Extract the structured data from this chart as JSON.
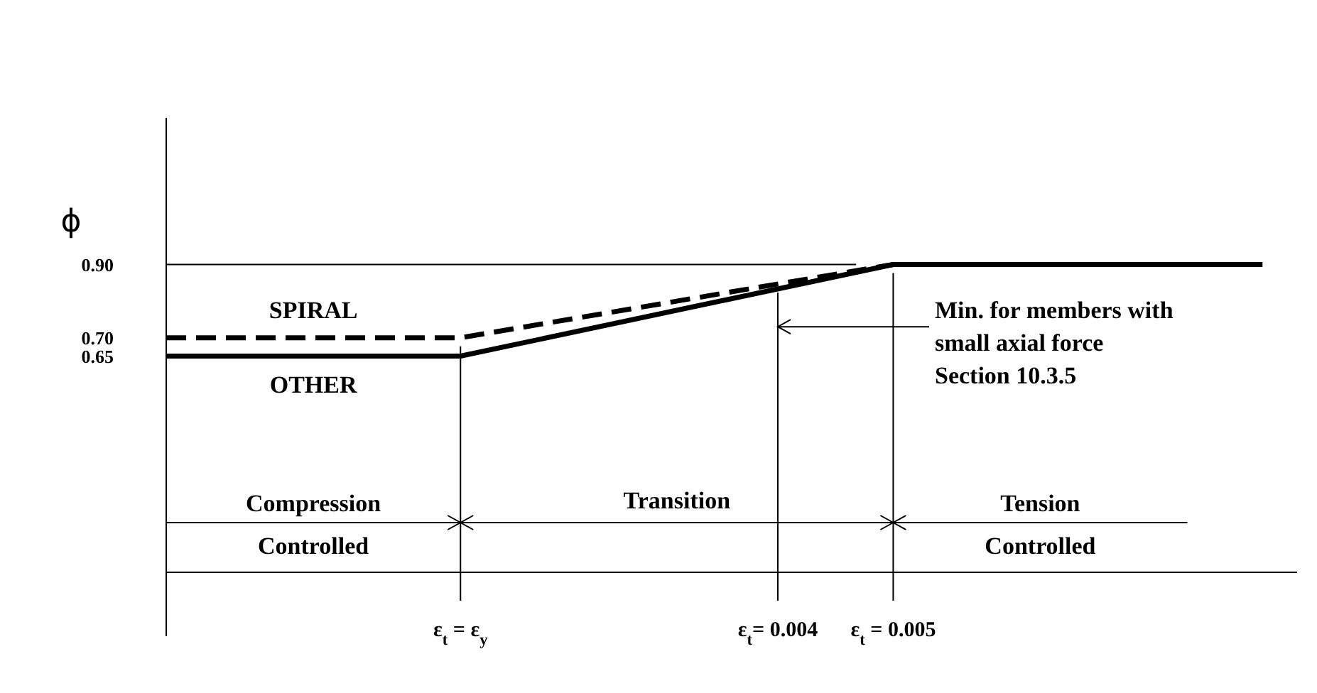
{
  "chart_data": {
    "type": "line",
    "ylabel": "ϕ",
    "xlim": [
      -0.0013,
      0.0085
    ],
    "ylim": [
      0.06,
      1.3
    ],
    "tick_labels": "y",
    "yticks": [
      0.65,
      {
        "value": 0.7,
        "label": "0.70"
      },
      {
        "value": 0.9,
        "label": "0.90"
      }
    ],
    "series": [
      {
        "name": "SPIRAL",
        "color": "#000000",
        "line_style": "dashed",
        "x": [
          -0.0013,
          0.00125,
          0.005
        ],
        "values": [
          0.7,
          0.7,
          0.9
        ]
      },
      {
        "name": "OTHER",
        "color": "#000000",
        "line_style": "solid",
        "x": [
          -0.0013,
          0.00125,
          0.005,
          0.0082
        ],
        "values": [
          0.65,
          0.65,
          0.9,
          0.9
        ]
      }
    ],
    "ref_lines": [
      {
        "axis": "y",
        "value": 0.9
      },
      {
        "axis": "x",
        "value": 0.00125,
        "label": "ε$_{t}$ = ε$_{y}$"
      },
      {
        "axis": "x",
        "value": 0.004,
        "label": "ε$_{t}$= 0.004"
      },
      {
        "axis": "x",
        "value": 0.005,
        "label": "ε$_{t}$ = 0.005"
      }
    ],
    "annotations": [
      "Compression Controlled",
      "Transition",
      "Tension Controlled",
      {
        "text": "Min. for members with small axial force Section 10.3.5",
        "x": 0.004,
        "y": 0.73
      }
    ],
    "grid": false,
    "legend": false
  }
}
